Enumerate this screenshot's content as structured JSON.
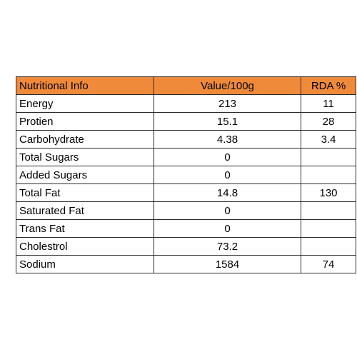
{
  "table": {
    "header_color": "#f08a3b",
    "headers": [
      "Nutritional Info",
      "Value/100g",
      "RDA %"
    ],
    "rows": [
      {
        "name": "Energy",
        "value": "213",
        "rda": "11"
      },
      {
        "name": "Protien",
        "value": "15.1",
        "rda": "28"
      },
      {
        "name": "Carbohydrate",
        "value": "4.38",
        "rda": "3.4"
      },
      {
        "name": "Total Sugars",
        "value": "0",
        "rda": ""
      },
      {
        "name": "Added Sugars",
        "value": "0",
        "rda": ""
      },
      {
        "name": "Total Fat",
        "value": "14.8",
        "rda": "130"
      },
      {
        "name": "Saturated Fat",
        "value": "0",
        "rda": ""
      },
      {
        "name": "Trans Fat",
        "value": "0",
        "rda": ""
      },
      {
        "name": "Cholestrol",
        "value": "73.2",
        "rda": ""
      },
      {
        "name": "Sodium",
        "value": "1584",
        "rda": "74"
      }
    ]
  }
}
